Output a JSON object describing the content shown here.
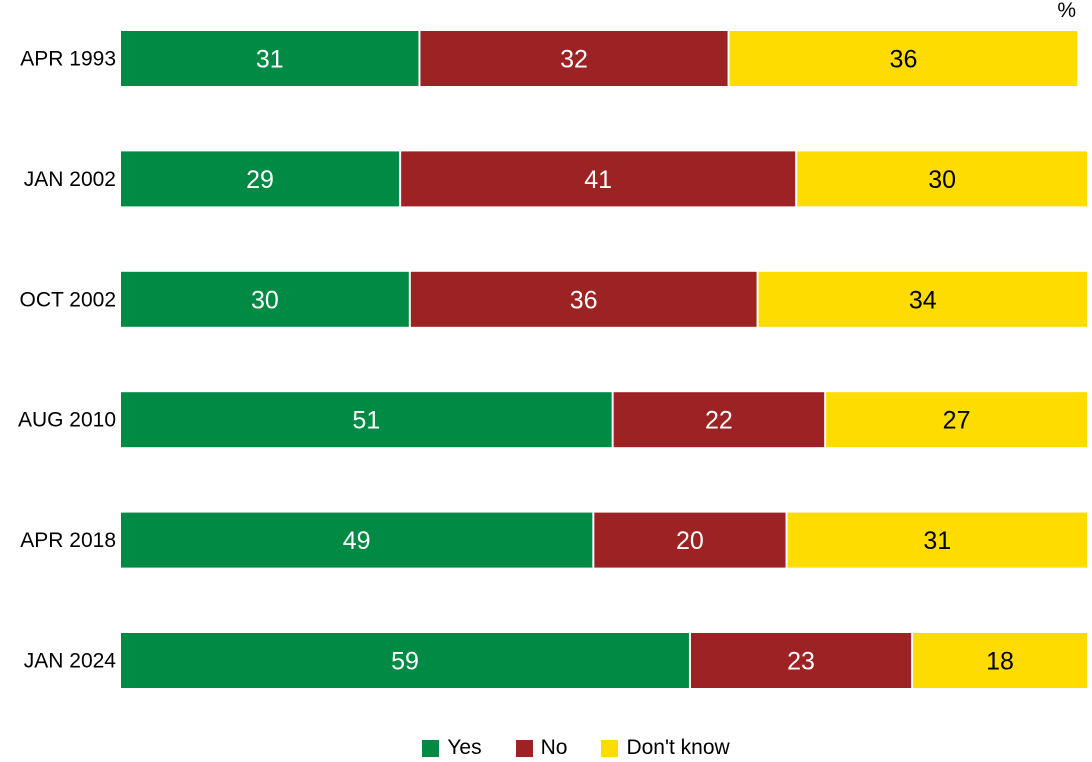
{
  "chart_data": {
    "type": "bar",
    "orientation": "horizontal",
    "stacked": true,
    "unit": "%",
    "categories": [
      "APR 1993",
      "JAN 2002",
      "OCT 2002",
      "AUG 2010",
      "APR 2018",
      "JAN 2024"
    ],
    "series": [
      {
        "name": "Yes",
        "color": "#008a44",
        "label_color": "#ffffff",
        "values": [
          31,
          29,
          30,
          51,
          49,
          59
        ]
      },
      {
        "name": "No",
        "color": "#9c2223",
        "label_color": "#ffffff",
        "values": [
          32,
          41,
          36,
          22,
          20,
          23
        ]
      },
      {
        "name": "Don't know",
        "color": "#ffdc00",
        "label_color": "#000000",
        "values": [
          36,
          30,
          34,
          27,
          31,
          18
        ]
      }
    ],
    "xlim": [
      0,
      100
    ],
    "grid": false,
    "legend_position": "bottom"
  }
}
